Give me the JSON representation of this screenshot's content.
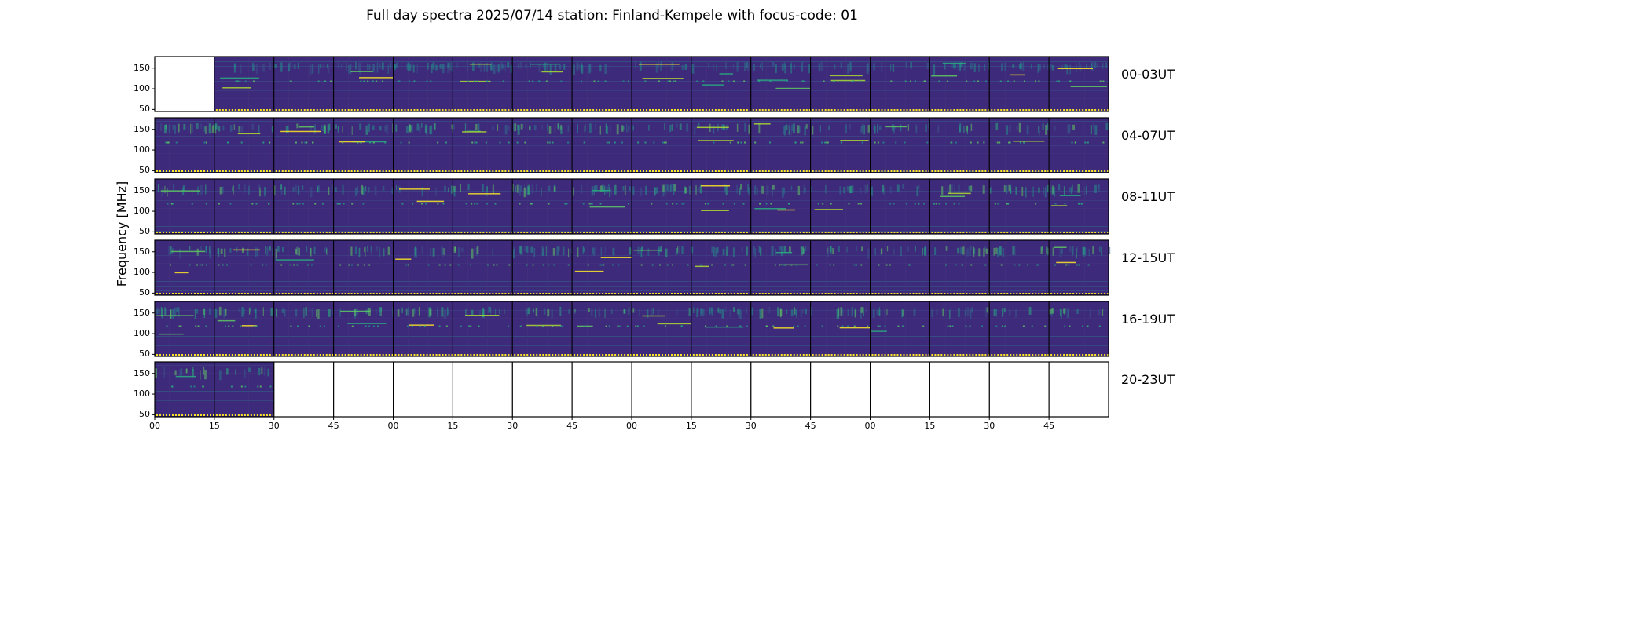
{
  "title": "Full day spectra 2025/07/14 station: Finland-Kempele with focus-code: 01",
  "chart_data": {
    "type": "heatmap",
    "title": "Full day spectra 2025/07/14 station: Finland-Kempele with focus-code: 01",
    "ylabel": "Frequency [MHz]",
    "xlabel": "",
    "ylim": [
      45,
      178
    ],
    "y_ticks": [
      "150",
      "100",
      "50"
    ],
    "x_ticks": [
      "00",
      "15",
      "30",
      "45",
      "00",
      "15",
      "30",
      "45",
      "00",
      "15",
      "30",
      "45",
      "00",
      "15",
      "30",
      "45"
    ],
    "colormap": "viridis",
    "rows": [
      {
        "label": "00-03UT",
        "panels_with_data": [
          2,
          3,
          4,
          5,
          6,
          7,
          8,
          9,
          10,
          11,
          12,
          13,
          14,
          15,
          16
        ]
      },
      {
        "label": "04-07UT",
        "panels_with_data": [
          1,
          2,
          3,
          4,
          5,
          6,
          7,
          8,
          9,
          10,
          11,
          12,
          13,
          14,
          15,
          16
        ]
      },
      {
        "label": "08-11UT",
        "panels_with_data": [
          1,
          2,
          3,
          4,
          5,
          6,
          7,
          8,
          9,
          10,
          11,
          12,
          13,
          14,
          15,
          16
        ]
      },
      {
        "label": "12-15UT",
        "panels_with_data": [
          1,
          2,
          3,
          4,
          5,
          6,
          7,
          8,
          9,
          10,
          11,
          12,
          13,
          14,
          15,
          16
        ]
      },
      {
        "label": "16-19UT",
        "panels_with_data": [
          1,
          2,
          3,
          4,
          5,
          6,
          7,
          8,
          9,
          10,
          11,
          12,
          13,
          14,
          15,
          16
        ]
      },
      {
        "label": "20-23UT",
        "panels_with_data": [
          1,
          2
        ]
      }
    ]
  }
}
